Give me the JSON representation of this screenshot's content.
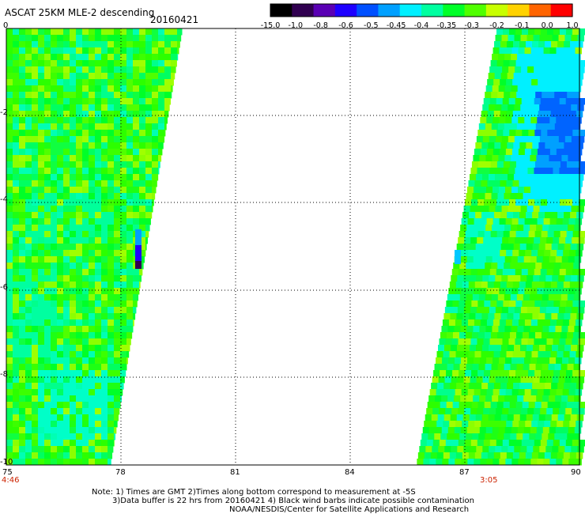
{
  "header": {
    "title": "ASCAT 25KM MLE-2 descending",
    "date": "20160421"
  },
  "colorbar": {
    "labels": [
      "-15.0",
      "-1.0",
      "-0.8",
      "-0.6",
      "-0.5",
      "-0.45",
      "-0.4",
      "-0.35",
      "-0.3",
      "-0.2",
      "-0.1",
      "0.0",
      "1.0"
    ],
    "colors": [
      "#000000",
      "#300050",
      "#5a00b4",
      "#1e00ff",
      "#0050ff",
      "#00a0ff",
      "#00f0ff",
      "#00ffa0",
      "#00ff28",
      "#50ff00",
      "#c8ff00",
      "#ffd200",
      "#ff6400",
      "#ff0000"
    ]
  },
  "map": {
    "lon_range": [
      75,
      90
    ],
    "lat_range": [
      -10,
      0
    ],
    "x_ticks": [
      "75",
      "78",
      "81",
      "84",
      "87",
      "90"
    ],
    "y_ticks": [
      "0",
      "-2",
      "-4",
      "-6",
      "-8",
      "-10"
    ],
    "swath_start_time": "4:46",
    "swath_end_time": "3:05"
  },
  "notes": {
    "line1": "Note: 1) Times are GMT 2)Times along bottom correspond to measurement at -5S",
    "line2": "3)Data buffer is 22 hrs from 20160421 4) Black wind barbs indicate possible contamination",
    "line3": "NOAA/NESDIS/Center for Satellite Applications and Research"
  }
}
